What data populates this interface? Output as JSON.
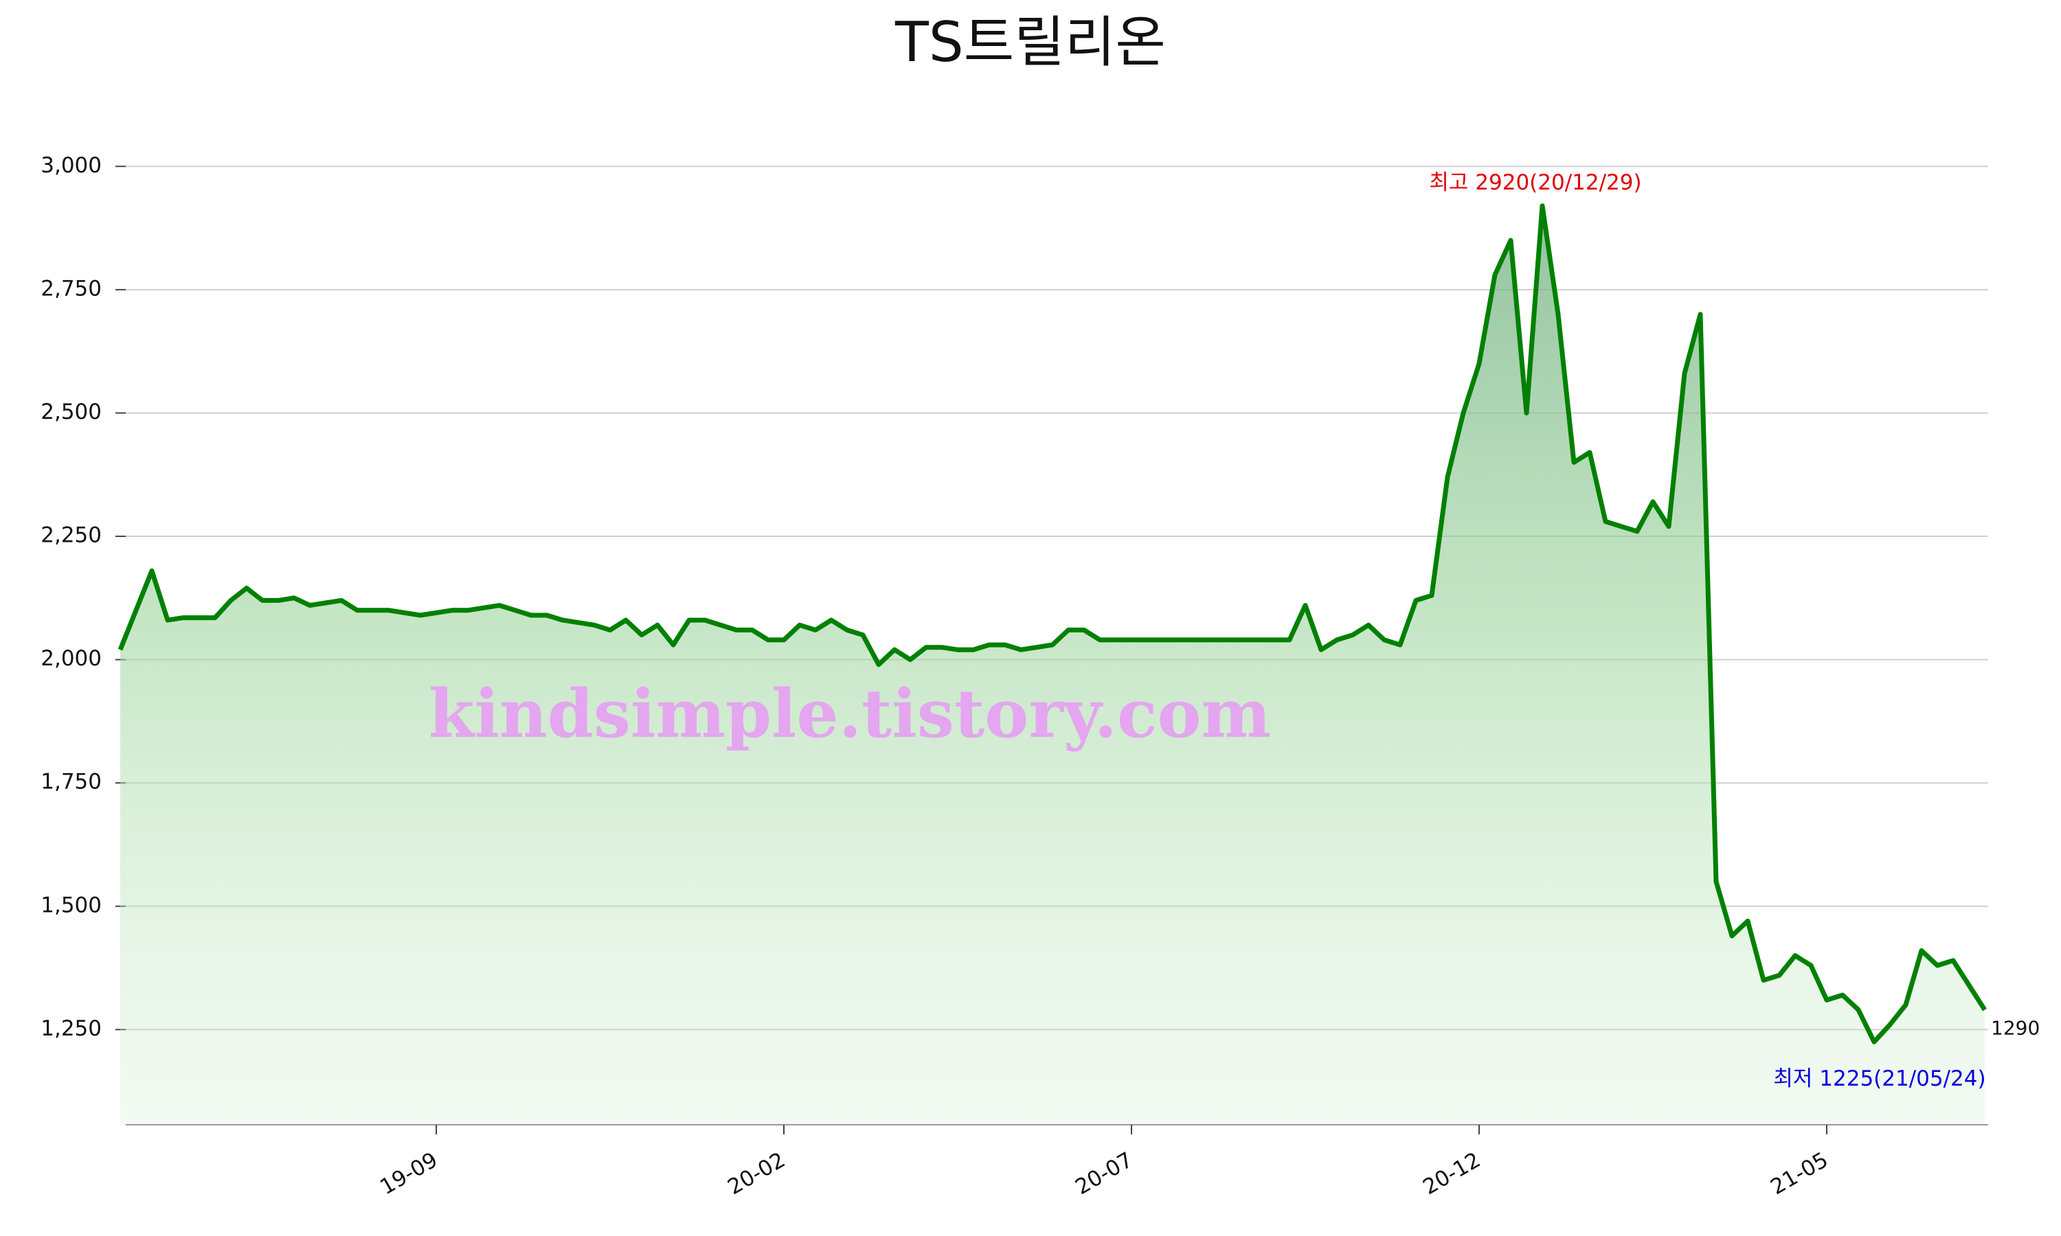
{
  "chart_data": {
    "type": "line",
    "title": "TS트릴리온",
    "categories": [
      null,
      null,
      null,
      null,
      null,
      null,
      null,
      null,
      null,
      null,
      null,
      null,
      null,
      null,
      null,
      null,
      null,
      null,
      null,
      null,
      "19-09",
      null,
      null,
      null,
      null,
      null,
      null,
      null,
      null,
      null,
      null,
      null,
      null,
      null,
      null,
      null,
      null,
      null,
      null,
      null,
      null,
      null,
      "20-02",
      null,
      null,
      null,
      null,
      null,
      null,
      null,
      null,
      null,
      null,
      null,
      null,
      null,
      null,
      null,
      null,
      null,
      null,
      null,
      null,
      null,
      "20-07",
      null,
      null,
      null,
      null,
      null,
      null,
      null,
      null,
      null,
      null,
      null,
      null,
      null,
      null,
      null,
      null,
      null,
      null,
      null,
      null,
      null,
      "20-12",
      null,
      null,
      null,
      null,
      null,
      null,
      null,
      null,
      null,
      null,
      null,
      null,
      null,
      null,
      null,
      null,
      null,
      null,
      null,
      null,
      null,
      "21-05",
      null,
      null,
      null,
      null,
      null,
      null,
      null,
      null,
      null,
      null
    ],
    "values": [
      2020,
      2100,
      2180,
      2080,
      2085,
      2085,
      2085,
      2120,
      2145,
      2120,
      2120,
      2125,
      2110,
      2115,
      2120,
      2100,
      2100,
      2100,
      2095,
      2090,
      2095,
      2100,
      2100,
      2105,
      2110,
      2100,
      2090,
      2090,
      2080,
      2075,
      2070,
      2060,
      2080,
      2050,
      2070,
      2030,
      2080,
      2080,
      2070,
      2060,
      2060,
      2040,
      2040,
      2070,
      2060,
      2080,
      2060,
      2050,
      1990,
      2020,
      2000,
      2025,
      2025,
      2020,
      2020,
      2030,
      2030,
      2020,
      2025,
      2030,
      2060,
      2060,
      2040,
      2040,
      2040,
      2040,
      2040,
      2040,
      2040,
      2040,
      2040,
      2040,
      2040,
      2040,
      2040,
      2110,
      2020,
      2040,
      2050,
      2070,
      2040,
      2030,
      2120,
      2130,
      2370,
      2500,
      2600,
      2780,
      2850,
      2500,
      2920,
      2700,
      2400,
      2420,
      2280,
      2270,
      2260,
      2320,
      2270,
      2580,
      2700,
      1550,
      1440,
      1470,
      1350,
      1360,
      1400,
      1380,
      1310,
      1320,
      1290,
      1225,
      1260,
      1300,
      1410,
      1380,
      1390,
      1340,
      1290
    ],
    "color": "#008000",
    "ylim": [
      1057,
      3070
    ],
    "yticks": [
      {
        "value": 1250,
        "label": "1,250"
      },
      {
        "value": 1500,
        "label": "1,500"
      },
      {
        "value": 1750,
        "label": "1,750"
      },
      {
        "value": 2000,
        "label": "2,000"
      },
      {
        "value": 2250,
        "label": "2,250"
      },
      {
        "value": 2500,
        "label": "2,500"
      },
      {
        "value": 2750,
        "label": "2,750"
      },
      {
        "value": 3000,
        "label": "3,000"
      }
    ],
    "grid": true,
    "annotations": {
      "high": "최고 2920(20/12/29)",
      "low": "최저 1225(21/05/24)"
    },
    "watermark": "kindsimple.tistory.com"
  }
}
